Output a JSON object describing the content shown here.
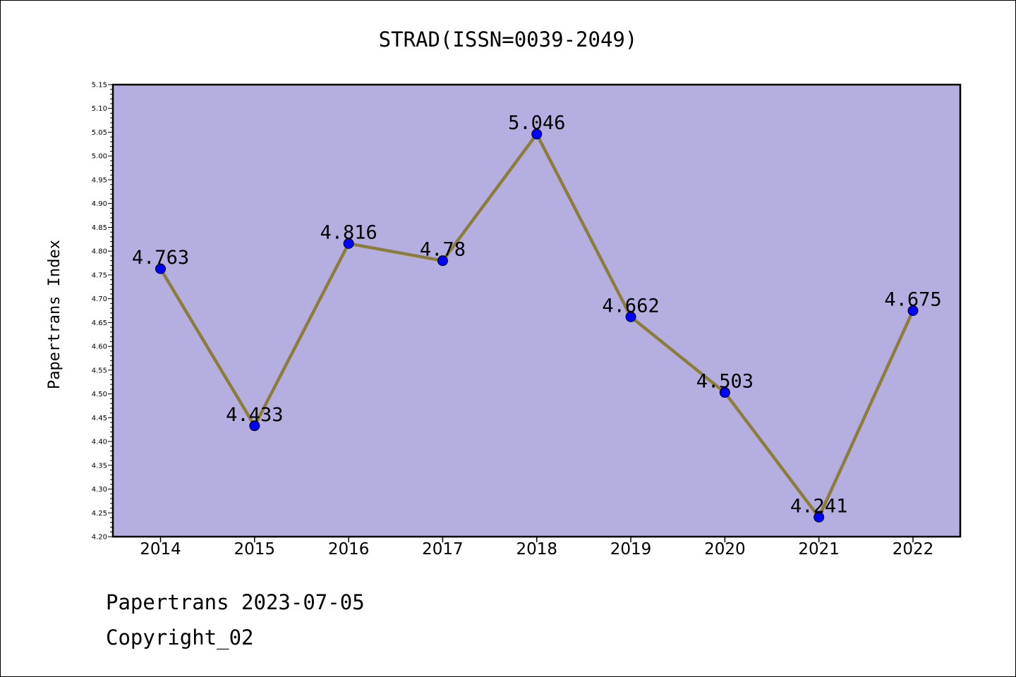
{
  "chart_data": {
    "type": "line",
    "title": "STRAD(ISSN=0039-2049)",
    "xlabel": "",
    "ylabel": "Papertrans Index",
    "categories": [
      "2014",
      "2015",
      "2016",
      "2017",
      "2018",
      "2019",
      "2020",
      "2021",
      "2022"
    ],
    "series": [
      {
        "values": [
          4.763,
          4.433,
          4.816,
          4.78,
          5.046,
          4.662,
          4.503,
          4.241,
          4.675
        ],
        "labels": [
          "4.763",
          "4.433",
          "4.816",
          "4.78",
          "5.046",
          "4.662",
          "4.503",
          "4.241",
          "4.675"
        ],
        "line_color": "#8b7d3a",
        "marker_color": "#0000ff"
      }
    ],
    "ylim": [
      4.2,
      5.15
    ],
    "yticks": [
      "4.20",
      "4.25",
      "4.30",
      "4.35",
      "4.40",
      "4.45",
      "4.50",
      "4.55",
      "4.60",
      "4.65",
      "4.70",
      "4.75",
      "4.80",
      "4.85",
      "4.90",
      "4.95",
      "5.00",
      "5.05",
      "5.10",
      "5.15"
    ],
    "plot_background": "#b4aee1",
    "grid": false,
    "legend": "none"
  },
  "footer": {
    "line1": "Papertrans 2023-07-05",
    "line2": "Copyright_02"
  }
}
